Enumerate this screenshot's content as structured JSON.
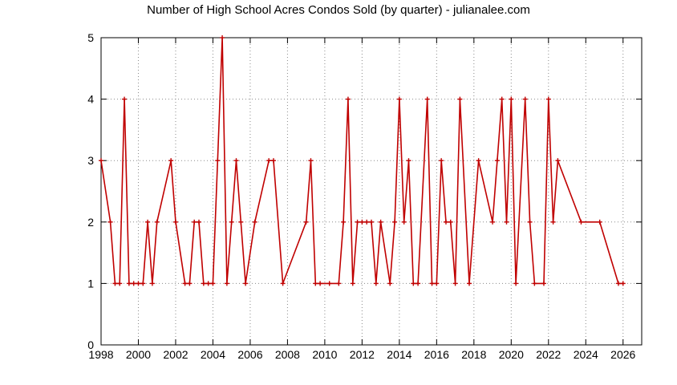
{
  "chart_data": {
    "type": "line",
    "title": "Number of High School Acres Condos Sold (by quarter) - julianalee.com",
    "xlabel": "",
    "ylabel": "",
    "xlim": [
      1998,
      2027
    ],
    "ylim": [
      0,
      5
    ],
    "x_ticks": [
      1998,
      2000,
      2002,
      2004,
      2006,
      2008,
      2010,
      2012,
      2014,
      2016,
      2018,
      2020,
      2022,
      2024,
      2026
    ],
    "y_ticks": [
      0,
      1,
      2,
      3,
      4,
      5
    ],
    "grid": true,
    "line_color": "#c00000",
    "series": [
      {
        "x": [
          1998.0,
          1998.5,
          1998.75,
          1999.0,
          1999.25,
          1999.5,
          1999.75,
          2000.0,
          2000.25,
          2000.5,
          2000.75,
          2001.0,
          2001.75,
          2002.0,
          2002.5,
          2002.75,
          2003.0,
          2003.25,
          2003.5,
          2003.75,
          2004.0,
          2004.25,
          2004.5,
          2004.75,
          2005.0,
          2005.25,
          2005.5,
          2005.75,
          2006.25,
          2007.0,
          2007.25,
          2007.75,
          2009.0,
          2009.25,
          2009.5,
          2009.75,
          2010.25,
          2010.75,
          2011.0,
          2011.25,
          2011.5,
          2011.75,
          2012.0,
          2012.25,
          2012.5,
          2012.75,
          2013.0,
          2013.5,
          2013.75,
          2014.0,
          2014.25,
          2014.5,
          2014.75,
          2015.0,
          2015.5,
          2015.75,
          2016.0,
          2016.25,
          2016.5,
          2016.75,
          2017.0,
          2017.25,
          2017.75,
          2018.25,
          2019.0,
          2019.25,
          2019.5,
          2019.75,
          2020.0,
          2020.25,
          2020.75,
          2021.0,
          2021.25,
          2021.75,
          2022.0,
          2022.25,
          2022.5,
          2023.75,
          2024.75,
          2025.75,
          2026.0
        ],
        "y": [
          3,
          2,
          1,
          1,
          4,
          1,
          1,
          1,
          1,
          2,
          1,
          2,
          3,
          2,
          1,
          1,
          2,
          2,
          1,
          1,
          1,
          3,
          5,
          1,
          2,
          3,
          2,
          1,
          2,
          3,
          3,
          1,
          2,
          3,
          1,
          1,
          1,
          1,
          2,
          4,
          1,
          2,
          2,
          2,
          2,
          1,
          2,
          1,
          2,
          4,
          2,
          3,
          1,
          1,
          4,
          1,
          1,
          3,
          2,
          2,
          1,
          4,
          1,
          3,
          2,
          3,
          4,
          2,
          4,
          1,
          4,
          2,
          1,
          1,
          4,
          2,
          3,
          2,
          2,
          1,
          1
        ]
      }
    ]
  }
}
